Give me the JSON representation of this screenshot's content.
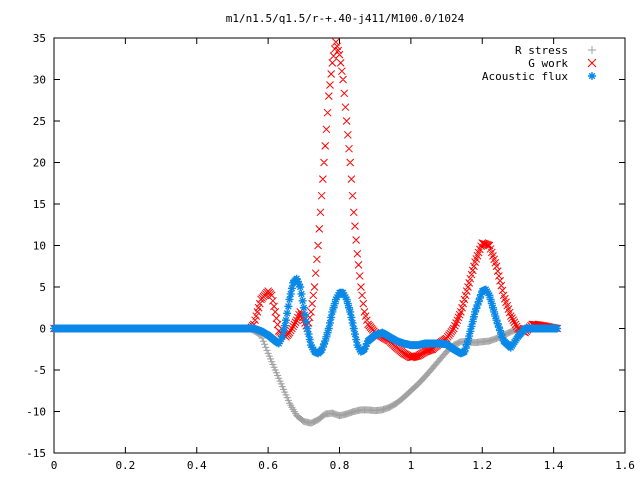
{
  "chart_data": {
    "type": "scatter",
    "title": "m1/n1.5/q1.5/r-+.40-j411/M100.0/1024",
    "xlabel": "",
    "ylabel": "",
    "xlim": [
      0,
      1.6
    ],
    "ylim": [
      -15,
      35
    ],
    "xticks": [
      "0",
      "0.2",
      "0.4",
      "0.6",
      "0.8",
      "1",
      "1.2",
      "1.4",
      "1.6"
    ],
    "yticks": [
      "35",
      "30",
      "25",
      "20",
      "15",
      "10",
      "5",
      "0",
      "-5",
      "-10",
      "-15"
    ],
    "grid": false,
    "legend_position": "top-right",
    "series": [
      {
        "name": "R stress",
        "marker": "plus",
        "color": "#a0a0a0",
        "points": [
          [
            0,
            0
          ],
          [
            0.55,
            0
          ],
          [
            0.58,
            -0.8
          ],
          [
            0.6,
            -3
          ],
          [
            0.62,
            -5
          ],
          [
            0.64,
            -7
          ],
          [
            0.66,
            -9
          ],
          [
            0.68,
            -10.5
          ],
          [
            0.7,
            -11.2
          ],
          [
            0.72,
            -11.4
          ],
          [
            0.74,
            -11
          ],
          [
            0.76,
            -10.3
          ],
          [
            0.78,
            -10.2
          ],
          [
            0.8,
            -10.5
          ],
          [
            0.82,
            -10.3
          ],
          [
            0.84,
            -10
          ],
          [
            0.86,
            -9.8
          ],
          [
            0.88,
            -9.8
          ],
          [
            0.9,
            -9.9
          ],
          [
            0.92,
            -9.8
          ],
          [
            0.94,
            -9.5
          ],
          [
            0.96,
            -9
          ],
          [
            0.98,
            -8.3
          ],
          [
            1.0,
            -7.5
          ],
          [
            1.02,
            -6.7
          ],
          [
            1.04,
            -5.8
          ],
          [
            1.06,
            -4.8
          ],
          [
            1.08,
            -3.8
          ],
          [
            1.1,
            -2.8
          ],
          [
            1.12,
            -2.0
          ],
          [
            1.14,
            -1.6
          ],
          [
            1.16,
            -1.6
          ],
          [
            1.18,
            -1.7
          ],
          [
            1.2,
            -1.6
          ],
          [
            1.22,
            -1.5
          ],
          [
            1.24,
            -1.2
          ],
          [
            1.26,
            -0.8
          ],
          [
            1.28,
            -0.4
          ],
          [
            1.3,
            0
          ],
          [
            1.35,
            0
          ],
          [
            1.41,
            0
          ]
        ]
      },
      {
        "name": "G work",
        "marker": "cross",
        "color": "#ff0000",
        "points": [
          [
            0,
            0
          ],
          [
            0.55,
            0
          ],
          [
            0.56,
            0.5
          ],
          [
            0.58,
            3.5
          ],
          [
            0.6,
            4.5
          ],
          [
            0.61,
            4
          ],
          [
            0.62,
            2
          ],
          [
            0.63,
            -0.3
          ],
          [
            0.65,
            -1
          ],
          [
            0.66,
            -0.5
          ],
          [
            0.68,
            1
          ],
          [
            0.69,
            2
          ],
          [
            0.7,
            1
          ],
          [
            0.71,
            0
          ],
          [
            0.72,
            2
          ],
          [
            0.73,
            5
          ],
          [
            0.74,
            10
          ],
          [
            0.75,
            16
          ],
          [
            0.76,
            22
          ],
          [
            0.77,
            28
          ],
          [
            0.78,
            32
          ],
          [
            0.79,
            34.5
          ],
          [
            0.8,
            33
          ],
          [
            0.81,
            30
          ],
          [
            0.82,
            25
          ],
          [
            0.83,
            20
          ],
          [
            0.84,
            14
          ],
          [
            0.85,
            9
          ],
          [
            0.86,
            5
          ],
          [
            0.87,
            2
          ],
          [
            0.88,
            0.5
          ],
          [
            0.9,
            -0.5
          ],
          [
            0.92,
            -1
          ],
          [
            0.94,
            -1.5
          ],
          [
            0.96,
            -2.3
          ],
          [
            0.98,
            -3
          ],
          [
            1.0,
            -3.5
          ],
          [
            1.02,
            -3.3
          ],
          [
            1.04,
            -2.8
          ],
          [
            1.06,
            -2.5
          ],
          [
            1.08,
            -1.8
          ],
          [
            1.1,
            -1.2
          ],
          [
            1.12,
            0
          ],
          [
            1.14,
            2
          ],
          [
            1.16,
            5
          ],
          [
            1.18,
            8
          ],
          [
            1.2,
            10.3
          ],
          [
            1.22,
            10
          ],
          [
            1.24,
            7.5
          ],
          [
            1.26,
            4
          ],
          [
            1.28,
            1.5
          ],
          [
            1.3,
            0
          ],
          [
            1.32,
            -0.5
          ],
          [
            1.34,
            0.5
          ],
          [
            1.36,
            0.4
          ],
          [
            1.41,
            0
          ]
        ]
      },
      {
        "name": "Acoustic flux",
        "marker": "star",
        "color": "#0a88e8",
        "points": [
          [
            0,
            0
          ],
          [
            0.56,
            0
          ],
          [
            0.58,
            -0.3
          ],
          [
            0.6,
            -0.8
          ],
          [
            0.62,
            -1.5
          ],
          [
            0.63,
            -1.8
          ],
          [
            0.64,
            -1
          ],
          [
            0.65,
            1
          ],
          [
            0.66,
            3.5
          ],
          [
            0.67,
            5.5
          ],
          [
            0.68,
            6
          ],
          [
            0.69,
            5
          ],
          [
            0.7,
            2.5
          ],
          [
            0.71,
            0
          ],
          [
            0.72,
            -2
          ],
          [
            0.73,
            -2.8
          ],
          [
            0.74,
            -3
          ],
          [
            0.75,
            -2.6
          ],
          [
            0.76,
            -1.5
          ],
          [
            0.77,
            0
          ],
          [
            0.78,
            2
          ],
          [
            0.79,
            3.5
          ],
          [
            0.8,
            4.3
          ],
          [
            0.81,
            4.3
          ],
          [
            0.82,
            3.5
          ],
          [
            0.83,
            2
          ],
          [
            0.84,
            0
          ],
          [
            0.85,
            -2
          ],
          [
            0.86,
            -2.8
          ],
          [
            0.87,
            -2.5
          ],
          [
            0.88,
            -1.5
          ],
          [
            0.9,
            -0.8
          ],
          [
            0.92,
            -0.5
          ],
          [
            0.94,
            -1
          ],
          [
            0.96,
            -1.5
          ],
          [
            0.98,
            -1.8
          ],
          [
            1.0,
            -2
          ],
          [
            1.02,
            -2
          ],
          [
            1.04,
            -1.8
          ],
          [
            1.06,
            -1.8
          ],
          [
            1.08,
            -1.8
          ],
          [
            1.1,
            -1.9
          ],
          [
            1.12,
            -2.5
          ],
          [
            1.14,
            -3
          ],
          [
            1.15,
            -2.8
          ],
          [
            1.16,
            -1.5
          ],
          [
            1.18,
            2
          ],
          [
            1.2,
            4.5
          ],
          [
            1.21,
            4.7
          ],
          [
            1.22,
            4
          ],
          [
            1.24,
            1
          ],
          [
            1.26,
            -1.5
          ],
          [
            1.28,
            -2.3
          ],
          [
            1.3,
            -1
          ],
          [
            1.32,
            0
          ],
          [
            1.36,
            0
          ],
          [
            1.41,
            0
          ]
        ]
      }
    ]
  }
}
